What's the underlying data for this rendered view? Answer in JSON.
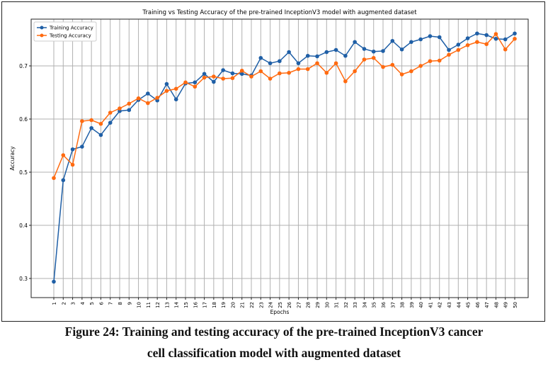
{
  "chart_data": {
    "type": "line",
    "title": "Training vs Testing Accuracy of the pre-trained InceptionV3 model with augmented dataset",
    "xlabel": "Epochs",
    "ylabel": "Accuracy",
    "x": [
      1,
      2,
      3,
      4,
      5,
      6,
      7,
      8,
      9,
      10,
      11,
      12,
      13,
      14,
      15,
      16,
      17,
      18,
      19,
      20,
      21,
      22,
      23,
      24,
      25,
      26,
      27,
      28,
      29,
      30,
      31,
      32,
      33,
      34,
      35,
      36,
      37,
      38,
      39,
      40,
      41,
      42,
      43,
      44,
      45,
      46,
      47,
      48,
      49,
      50
    ],
    "yticks": [
      "0.3",
      "0.4",
      "0.5",
      "0.6",
      "0.7"
    ],
    "ytick_values": [
      0.3,
      0.4,
      0.5,
      0.6,
      0.7
    ],
    "ylim": [
      0.28,
      0.785
    ],
    "grid": true,
    "legend_position": "top-left",
    "series": [
      {
        "name": "Training Accuracy",
        "color": "#1f5fa6",
        "values": [
          0.294,
          0.485,
          0.543,
          0.548,
          0.583,
          0.57,
          0.593,
          0.615,
          0.617,
          0.636,
          0.648,
          0.635,
          0.666,
          0.637,
          0.667,
          0.669,
          0.685,
          0.67,
          0.692,
          0.686,
          0.685,
          0.682,
          0.715,
          0.705,
          0.709,
          0.726,
          0.705,
          0.719,
          0.718,
          0.726,
          0.73,
          0.719,
          0.745,
          0.732,
          0.727,
          0.728,
          0.747,
          0.731,
          0.745,
          0.75,
          0.756,
          0.754,
          0.73,
          0.74,
          0.752,
          0.761,
          0.758,
          0.751,
          0.75,
          0.761
        ]
      },
      {
        "name": "Testing Accuracy",
        "color": "#ff6a10",
        "values": [
          0.489,
          0.532,
          0.514,
          0.596,
          0.598,
          0.591,
          0.612,
          0.62,
          0.629,
          0.639,
          0.63,
          0.64,
          0.653,
          0.657,
          0.669,
          0.661,
          0.678,
          0.68,
          0.676,
          0.677,
          0.691,
          0.68,
          0.69,
          0.676,
          0.686,
          0.687,
          0.694,
          0.694,
          0.705,
          0.687,
          0.705,
          0.671,
          0.69,
          0.712,
          0.715,
          0.698,
          0.702,
          0.684,
          0.69,
          0.7,
          0.709,
          0.71,
          0.721,
          0.73,
          0.739,
          0.745,
          0.741,
          0.76,
          0.731,
          0.751
        ]
      }
    ]
  },
  "caption": {
    "line1": "Figure 24: Training and testing accuracy of the pre-trained InceptionV3 cancer",
    "line2": "cell classification  model with augmented dataset"
  }
}
